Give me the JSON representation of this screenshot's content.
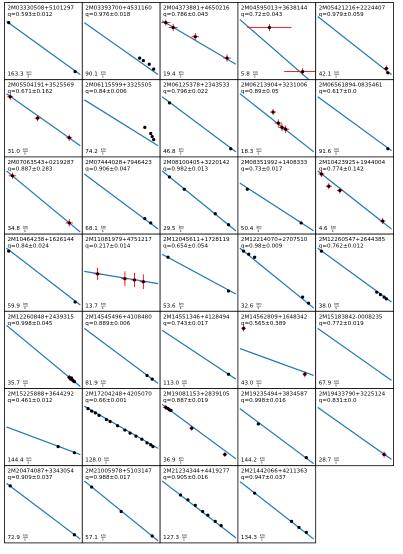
{
  "line_color": "#1f77b4",
  "point_color": "#000000",
  "error_color": "#ff0000",
  "chart_data": {
    "type": "scatter",
    "layout": "grid-5-columns",
    "axes": "no-ticks",
    "panels": [
      {
        "name": "2M03330508+5101297",
        "q": "q=0.593±0.012",
        "period": "163.3",
        "points": [
          [
            0.03,
            0.1
          ],
          [
            0.93,
            0.9
          ]
        ],
        "errs": [],
        "line": [
          0.0,
          0.08,
          1.0,
          0.95
        ]
      },
      {
        "name": "2M03393700+4531160",
        "q": "q=0.976±0.018",
        "period": "90.1",
        "points": [
          [
            0.75,
            0.68
          ],
          [
            0.8,
            0.72
          ],
          [
            0.88,
            0.78
          ],
          [
            0.94,
            0.86
          ]
        ],
        "errs": [],
        "line": [
          0.0,
          0.1,
          1.0,
          0.95
        ]
      },
      {
        "name": "2M04373881+4650216",
        "q": "q=0.786±0.043",
        "period": "19.4",
        "points": [
          [
            0.05,
            0.1
          ],
          [
            0.15,
            0.18
          ],
          [
            0.45,
            0.33
          ],
          [
            0.88,
            0.68
          ]
        ],
        "errs": [
          [
            0.05,
            0.1,
            0.06,
            0.05
          ],
          [
            0.15,
            0.18,
            0.06,
            0.06
          ],
          [
            0.45,
            0.33,
            0.05,
            0.06
          ],
          [
            0.88,
            0.68,
            0.05,
            0.06
          ]
        ],
        "line": [
          0.0,
          0.07,
          1.0,
          0.78
        ]
      },
      {
        "name": "2M04595013+3638144",
        "q": "q=0.72±0.043",
        "period": "5.8",
        "points": [
          [
            0.4,
            0.18
          ],
          [
            0.85,
            0.9
          ]
        ],
        "errs": [
          [
            0.4,
            0.18,
            0.3,
            0.06
          ],
          [
            0.85,
            0.9,
            0.25,
            0.06
          ]
        ],
        "line": [
          0.0,
          0.05,
          1.0,
          1.1
        ]
      },
      {
        "name": "2M05421216+2224407",
        "q": "q=0.979±0.059",
        "period": "42.1",
        "points": [
          [
            0.93,
            0.85
          ],
          [
            0.95,
            0.92
          ]
        ],
        "errs": [
          [
            0.93,
            0.85,
            0.03,
            0.05
          ]
        ],
        "line": [
          0.0,
          0.0,
          1.0,
          0.95
        ]
      },
      {
        "name": "2M05504191+3525569",
        "q": "q=0.671±0.162",
        "period": "31.0",
        "points": [
          [
            0.05,
            0.05
          ],
          [
            0.42,
            0.4
          ],
          [
            0.85,
            0.72
          ]
        ],
        "errs": [
          [
            0.05,
            0.05,
            0.04,
            0.05
          ],
          [
            0.42,
            0.4,
            0.04,
            0.05
          ],
          [
            0.85,
            0.72,
            0.04,
            0.05
          ]
        ],
        "line": [
          0.0,
          0.0,
          1.0,
          0.85
        ]
      },
      {
        "name": "2M06115599+3325505",
        "q": "q=0.84±0.006",
        "period": "74.2",
        "points": [
          [
            0.82,
            0.55
          ],
          [
            0.9,
            0.65
          ],
          [
            0.92,
            0.7
          ],
          [
            0.94,
            0.75
          ]
        ],
        "errs": [],
        "line": [
          0.0,
          0.1,
          1.0,
          0.85
        ]
      },
      {
        "name": "2M06125378+2343533",
        "q": "q=0.796±0.022",
        "period": "46.8",
        "points": [
          [
            0.1,
            0.15
          ],
          [
            0.93,
            0.9
          ]
        ],
        "errs": [],
        "line": [
          0.0,
          0.05,
          1.0,
          0.95
        ]
      },
      {
        "name": "2M06213904+3231006",
        "q": "q=0.89±0.05",
        "period": "18.3",
        "points": [
          [
            0.45,
            0.3
          ],
          [
            0.52,
            0.48
          ],
          [
            0.57,
            0.55
          ],
          [
            0.62,
            0.58
          ]
        ],
        "errs": [
          [
            0.45,
            0.3,
            0.04,
            0.05
          ],
          [
            0.52,
            0.48,
            0.05,
            0.06
          ],
          [
            0.57,
            0.55,
            0.05,
            0.06
          ],
          [
            0.62,
            0.58,
            0.05,
            0.06
          ]
        ],
        "line": [
          0.0,
          0.0,
          1.0,
          0.95
        ]
      },
      {
        "name": "2M06561894-0835461",
        "q": "q=0.617±0.0",
        "period": "91.6",
        "points": [
          [
            0.95,
            0.9
          ]
        ],
        "errs": [],
        "line": [
          0.0,
          0.05,
          1.0,
          0.93
        ]
      },
      {
        "name": "2M07063543+0219287",
        "q": "q=0.887±0.283",
        "period": "34.8",
        "points": [
          [
            0.08,
            0.08
          ],
          [
            0.85,
            0.85
          ]
        ],
        "errs": [
          [
            0.08,
            0.08,
            0.05,
            0.05
          ],
          [
            0.85,
            0.85,
            0.05,
            0.06
          ]
        ],
        "line": [
          0.0,
          0.0,
          1.0,
          1.0
        ]
      },
      {
        "name": "2M07444028+7946423",
        "q": "q=0.906±0.047",
        "period": "68.1",
        "points": [
          [
            0.82,
            0.78
          ],
          [
            0.9,
            0.85
          ]
        ],
        "errs": [],
        "line": [
          0.0,
          0.05,
          1.0,
          0.95
        ]
      },
      {
        "name": "2M08100405+3220142",
        "q": "q=0.982±0.013",
        "period": "29.5",
        "points": [
          [
            0.1,
            0.1
          ],
          [
            0.3,
            0.3
          ],
          [
            0.72,
            0.7
          ],
          [
            0.9,
            0.88
          ]
        ],
        "errs": [],
        "line": [
          0.0,
          0.0,
          1.0,
          0.98
        ]
      },
      {
        "name": "2M08351992+1408333",
        "q": "q=0.73±0.017",
        "period": "50.4",
        "points": [
          [
            0.1,
            0.3
          ],
          [
            0.83,
            0.85
          ]
        ],
        "errs": [],
        "line": [
          0.0,
          0.2,
          1.0,
          0.98
        ]
      },
      {
        "name": "2M10423925+1944004",
        "q": "q=0.774±0.142",
        "period": "4.6",
        "points": [
          [
            0.05,
            0.05
          ],
          [
            0.15,
            0.25
          ],
          [
            0.3,
            0.32
          ],
          [
            0.88,
            0.82
          ]
        ],
        "errs": [
          [
            0.05,
            0.05,
            0.04,
            0.05
          ],
          [
            0.15,
            0.25,
            0.04,
            0.05
          ],
          [
            0.3,
            0.32,
            0.04,
            0.05
          ],
          [
            0.88,
            0.82,
            0.04,
            0.05
          ]
        ],
        "line": [
          0.0,
          0.0,
          1.0,
          0.95
        ]
      },
      {
        "name": "2M10464238+1626144",
        "q": "q=0.84±0.024",
        "period": "59.9",
        "points": [
          [
            0.03,
            0.05
          ],
          [
            0.93,
            0.88
          ]
        ],
        "errs": [],
        "line": [
          0.0,
          0.0,
          1.0,
          0.93
        ]
      },
      {
        "name": "2M11081979+4751217",
        "q": "q=0.217±0.014",
        "period": "13.7",
        "points": [
          [
            0.18,
            0.42
          ],
          [
            0.55,
            0.5
          ],
          [
            0.68,
            0.52
          ],
          [
            0.8,
            0.55
          ]
        ],
        "errs": [
          [
            0.18,
            0.42,
            0.05,
            0.1
          ],
          [
            0.55,
            0.5,
            0.05,
            0.12
          ],
          [
            0.68,
            0.52,
            0.05,
            0.12
          ],
          [
            0.8,
            0.55,
            0.05,
            0.12
          ]
        ],
        "line": [
          0.0,
          0.38,
          1.0,
          0.58
        ]
      },
      {
        "name": "2M12045611+1728119",
        "q": "q=0.654±0.054",
        "period": "53.6",
        "points": [
          [
            0.08,
            0.15
          ],
          [
            0.9,
            0.7
          ]
        ],
        "errs": [],
        "line": [
          0.0,
          0.1,
          1.0,
          0.75
        ]
      },
      {
        "name": "2M12214070+2707510",
        "q": "q=0.98±0.009",
        "period": "32.6",
        "points": [
          [
            0.05,
            0.05
          ],
          [
            0.12,
            0.1
          ],
          [
            0.2,
            0.15
          ],
          [
            0.85,
            0.8
          ],
          [
            0.93,
            0.9
          ]
        ],
        "errs": [],
        "line": [
          0.0,
          0.0,
          1.0,
          0.98
        ]
      },
      {
        "name": "2M12260547+2644385",
        "q": "q=0.762±0.012",
        "period": "38.0",
        "points": [
          [
            0.05,
            0.05
          ],
          [
            0.8,
            0.72
          ],
          [
            0.85,
            0.76
          ],
          [
            0.9,
            0.8
          ],
          [
            0.93,
            0.83
          ]
        ],
        "errs": [],
        "line": [
          0.0,
          0.0,
          1.0,
          0.88
        ]
      },
      {
        "name": "2M12260848+2439315",
        "q": "q=0.998±0.045",
        "period": "35.7",
        "points": [
          [
            0.85,
            0.85
          ],
          [
            0.87,
            0.88
          ],
          [
            0.9,
            0.9
          ],
          [
            0.92,
            0.92
          ],
          [
            0.88,
            0.86
          ]
        ],
        "errs": [
          [
            0.85,
            0.85,
            0.03,
            0.04
          ],
          [
            0.9,
            0.9,
            0.03,
            0.04
          ]
        ],
        "line": [
          0.0,
          0.0,
          1.0,
          1.0
        ]
      },
      {
        "name": "2M14545496+4108480",
        "q": "q=0.889±0.006",
        "period": "81.9",
        "points": [
          [
            0.85,
            0.82
          ],
          [
            0.92,
            0.88
          ]
        ],
        "errs": [],
        "line": [
          0.0,
          0.05,
          1.0,
          0.95
        ]
      },
      {
        "name": "2M14551346+4128494",
        "q": "q=0.743±0.017",
        "period": "113.0",
        "points": [
          [
            0.9,
            0.8
          ]
        ],
        "errs": [],
        "line": [
          0.0,
          0.08,
          1.0,
          0.88
        ]
      },
      {
        "name": "2M14562809+1648342",
        "q": "q=0.565±0.389",
        "period": "43.0",
        "points": [
          [
            0.05,
            0.05
          ],
          [
            0.88,
            0.8
          ]
        ],
        "errs": [
          [
            0.05,
            0.05,
            0.03,
            0.05
          ],
          [
            0.88,
            0.8,
            0.03,
            0.05
          ]
        ],
        "line": [
          0.0,
          0.38,
          1.0,
          0.82
        ]
      },
      {
        "name": "2M15183842-0008235",
        "q": "q=0.772±0.019",
        "period": "67.9",
        "points": [],
        "errs": [],
        "line": [
          0.0,
          0.05,
          1.0,
          0.9
        ]
      },
      {
        "name": "2M15225888+3644292",
        "q": "q=0.461±0.012",
        "period": "144.4",
        "points": [
          [
            0.7,
            0.72
          ],
          [
            0.92,
            0.82
          ]
        ],
        "errs": [],
        "line": [
          0.0,
          0.4,
          1.0,
          0.85
        ]
      },
      {
        "name": "2M17204248+4205070",
        "q": "q=0.66±0.001",
        "period": "128.0",
        "points": [
          [
            0.05,
            0.1
          ],
          [
            0.1,
            0.14
          ],
          [
            0.15,
            0.17
          ],
          [
            0.2,
            0.21
          ],
          [
            0.3,
            0.28
          ],
          [
            0.35,
            0.31
          ],
          [
            0.45,
            0.38
          ],
          [
            0.55,
            0.45
          ],
          [
            0.62,
            0.5
          ],
          [
            0.7,
            0.55
          ],
          [
            0.78,
            0.6
          ],
          [
            0.85,
            0.66
          ],
          [
            0.9,
            0.69
          ],
          [
            0.93,
            0.72
          ]
        ],
        "errs": [],
        "line": [
          0.0,
          0.06,
          1.0,
          0.75
        ]
      },
      {
        "name": "2M19081153+2839105",
        "q": "q=0.887±0.019",
        "period": "36.9",
        "points": [
          [
            0.05,
            0.08
          ],
          [
            0.08,
            0.1
          ],
          [
            0.1,
            0.12
          ],
          [
            0.12,
            0.13
          ],
          [
            0.4,
            0.42
          ],
          [
            0.85,
            0.85
          ]
        ],
        "errs": [
          [
            0.05,
            0.08,
            0.04,
            0.04
          ],
          [
            0.4,
            0.42,
            0.03,
            0.04
          ],
          [
            0.85,
            0.85,
            0.03,
            0.04
          ]
        ],
        "line": [
          0.0,
          0.03,
          1.0,
          0.92
        ]
      },
      {
        "name": "2M19235494+3834587",
        "q": "q=0.998±0.016",
        "period": "144.2",
        "points": [
          [
            0.25,
            0.35
          ],
          [
            0.9,
            0.9
          ]
        ],
        "errs": [],
        "line": [
          0.0,
          0.1,
          1.0,
          1.0
        ]
      },
      {
        "name": "2M19433790+3225124",
        "q": "q=0.831±0.0",
        "period": "28.7",
        "points": [
          [
            0.9,
            0.85
          ]
        ],
        "errs": [
          [
            0.9,
            0.85,
            0.03,
            0.05
          ]
        ],
        "line": [
          0.0,
          0.08,
          1.0,
          0.93
        ]
      },
      {
        "name": "2M20474087+3343054",
        "q": "q=0.909±0.037",
        "period": "72.9",
        "points": [
          [
            0.05,
            0.1
          ],
          [
            0.92,
            0.9
          ]
        ],
        "errs": [],
        "line": [
          0.0,
          0.06,
          1.0,
          0.97
        ]
      },
      {
        "name": "2M21005978+5103147",
        "q": "q=0.988±0.017",
        "period": "57.1",
        "points": [
          [
            0.1,
            0.12
          ],
          [
            0.5,
            0.52
          ],
          [
            0.92,
            0.92
          ]
        ],
        "errs": [],
        "line": [
          0.0,
          0.02,
          1.0,
          1.0
        ]
      },
      {
        "name": "2M21234344+4419277",
        "q": "q=0.905±0.016",
        "period": "127.3",
        "points": [
          [
            0.25,
            0.25
          ],
          [
            0.35,
            0.33
          ],
          [
            0.45,
            0.42
          ],
          [
            0.55,
            0.52
          ],
          [
            0.62,
            0.58
          ],
          [
            0.72,
            0.68
          ],
          [
            0.8,
            0.75
          ]
        ],
        "errs": [],
        "line": [
          0.0,
          0.02,
          1.0,
          0.95
        ]
      },
      {
        "name": "2M21442066+4211363",
        "q": "q=0.947±0.037",
        "period": "134.3",
        "points": [
          [
            0.2,
            0.22
          ],
          [
            0.7,
            0.68
          ],
          [
            0.8,
            0.78
          ],
          [
            0.9,
            0.86
          ]
        ],
        "errs": [],
        "line": [
          0.0,
          0.03,
          1.0,
          0.97
        ]
      }
    ]
  }
}
